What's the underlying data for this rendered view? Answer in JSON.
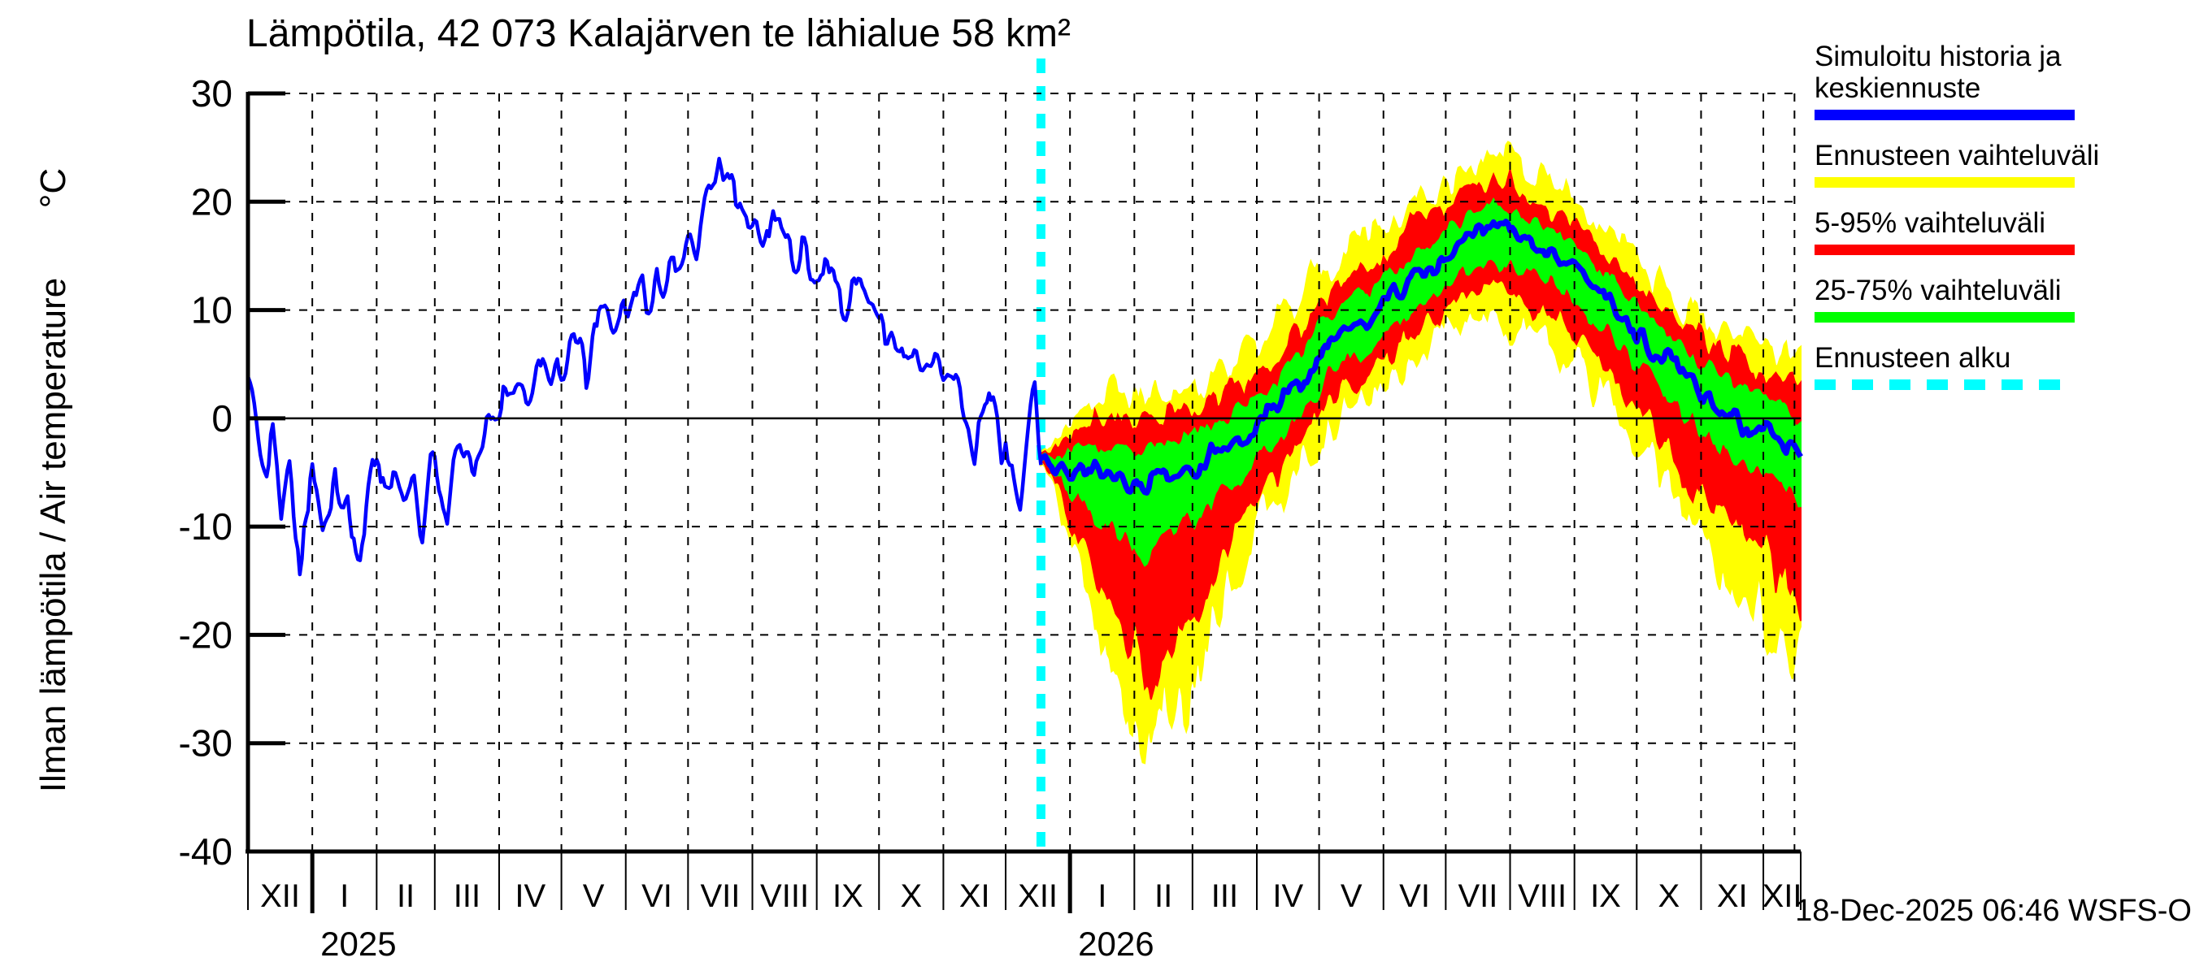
{
  "title": "Lämpötila, 42 073 Kalajärven te lähialue 58 km²",
  "y_axis_label": "Ilman lämpötila / Air temperature       °C",
  "timestamp": "18-Dec-2025 06:46 WSFS-O",
  "legend": {
    "items": [
      {
        "label": "Simuloitu historia ja keskiennuste",
        "color": "#0000ff",
        "style": "solid"
      },
      {
        "label": "Ennusteen vaihteluväli",
        "color": "#ffff00",
        "style": "solid"
      },
      {
        "label": "5-95% vaihteluväli",
        "color": "#ff0000",
        "style": "solid"
      },
      {
        "label": "25-75% vaihteluväli",
        "color": "#00ff00",
        "style": "solid"
      },
      {
        "label": "Ennusteen alku",
        "color": "#00ffff",
        "style": "dashed"
      }
    ]
  },
  "colors": {
    "history_line": "#0000ff",
    "median_line": "#0000ff",
    "band_minmax": "#ffff00",
    "band_5_95": "#ff0000",
    "band_25_75": "#00ff00",
    "forecast_start_line": "#00ffff",
    "grid": "#000000",
    "background": "#ffffff"
  },
  "chart_data": {
    "type": "line",
    "title": "Lämpötila, 42 073 Kalajärven te lähialue 58 km²",
    "ylabel": "Ilman lämpötila / Air temperature  °C",
    "ylim": [
      -40,
      30
    ],
    "yticks": [
      30,
      20,
      10,
      0,
      -10,
      -20,
      -30,
      -40
    ],
    "grid": "dashed, months vertical and 10°C horizontal, zero line solid",
    "legend_position": "right, outside plot",
    "x_start_date": "2024-12-01",
    "x_total_days": 748,
    "forecast_start_day": 382,
    "forecast_start_date": "18-Dec-2025",
    "month_boundary_days": [
      0,
      31,
      62,
      90,
      121,
      151,
      182,
      212,
      243,
      274,
      304,
      335,
      365,
      396,
      427,
      455,
      486,
      516,
      547,
      577,
      608,
      639,
      669,
      700,
      730
    ],
    "month_labels": [
      "XII",
      "I",
      "II",
      "III",
      "IV",
      "V",
      "VI",
      "VII",
      "VIII",
      "IX",
      "X",
      "XI",
      "XII",
      "I",
      "II",
      "III",
      "IV",
      "V",
      "VI",
      "VII",
      "VIII",
      "IX",
      "X",
      "XI",
      "XII"
    ],
    "year_labels": [
      {
        "label": "2025",
        "day": 31
      },
      {
        "label": "2026",
        "day": 396
      }
    ],
    "year_tick_days": [
      31,
      396
    ],
    "right_edge_gridline_day": 745,
    "series_notes": "history = simulated observed daily air temperature; forecast bands fan out from 18-Dec-2025; values in °C read from axes; daily jitter reproduced with seeded noise",
    "history_mean_points": [
      [
        0,
        5
      ],
      [
        4,
        0
      ],
      [
        8,
        -6
      ],
      [
        12,
        -3
      ],
      [
        16,
        -8
      ],
      [
        20,
        -5
      ],
      [
        25,
        -12
      ],
      [
        31,
        -6
      ],
      [
        36,
        -10
      ],
      [
        42,
        -4
      ],
      [
        48,
        -9
      ],
      [
        54,
        -12
      ],
      [
        60,
        -5
      ],
      [
        66,
        -8
      ],
      [
        72,
        -3
      ],
      [
        78,
        -7
      ],
      [
        84,
        -10
      ],
      [
        90,
        -4
      ],
      [
        96,
        -7
      ],
      [
        102,
        -2
      ],
      [
        108,
        -5
      ],
      [
        114,
        -2
      ],
      [
        121,
        0
      ],
      [
        128,
        2
      ],
      [
        134,
        1
      ],
      [
        140,
        4
      ],
      [
        146,
        3
      ],
      [
        151,
        5
      ],
      [
        157,
        7
      ],
      [
        163,
        5
      ],
      [
        169,
        9
      ],
      [
        175,
        8
      ],
      [
        182,
        10
      ],
      [
        186,
        12
      ],
      [
        190,
        14
      ],
      [
        194,
        11
      ],
      [
        200,
        13
      ],
      [
        206,
        12
      ],
      [
        212,
        14
      ],
      [
        217,
        16
      ],
      [
        222,
        22
      ],
      [
        226,
        23.5
      ],
      [
        230,
        21
      ],
      [
        234,
        22
      ],
      [
        238,
        20
      ],
      [
        243,
        17
      ],
      [
        249,
        16
      ],
      [
        255,
        18
      ],
      [
        261,
        15
      ],
      [
        267,
        16
      ],
      [
        274,
        13
      ],
      [
        280,
        14
      ],
      [
        286,
        11
      ],
      [
        292,
        12
      ],
      [
        298,
        9
      ],
      [
        304,
        8
      ],
      [
        310,
        9
      ],
      [
        316,
        5
      ],
      [
        322,
        7
      ],
      [
        328,
        4
      ],
      [
        335,
        3
      ],
      [
        341,
        4
      ],
      [
        345,
        -2
      ],
      [
        350,
        -5
      ],
      [
        355,
        3
      ],
      [
        359,
        2
      ],
      [
        362,
        -2
      ],
      [
        365,
        -1
      ],
      [
        368,
        -5
      ],
      [
        372,
        -6
      ],
      [
        376,
        1
      ],
      [
        379,
        3
      ],
      [
        382,
        -4
      ]
    ],
    "history_noise_amplitude": [
      [
        0,
        3.6
      ],
      [
        90,
        3.3
      ],
      [
        121,
        2.6
      ],
      [
        182,
        3.0
      ],
      [
        212,
        3.6
      ],
      [
        220,
        2.5
      ],
      [
        232,
        2.5
      ],
      [
        240,
        3.2
      ],
      [
        274,
        2.8
      ],
      [
        304,
        2.9
      ],
      [
        365,
        3.1
      ],
      [
        382,
        3.0
      ]
    ],
    "forecast_median_points": [
      [
        382,
        -3.5
      ],
      [
        388,
        -4.2
      ],
      [
        396,
        -5
      ],
      [
        403,
        -4.3
      ],
      [
        410,
        -4.8
      ],
      [
        417,
        -5.5
      ],
      [
        424,
        -6
      ],
      [
        431,
        -6.5
      ],
      [
        438,
        -5.8
      ],
      [
        445,
        -5.2
      ],
      [
        452,
        -5
      ],
      [
        460,
        -4.2
      ],
      [
        468,
        -3
      ],
      [
        476,
        -2
      ],
      [
        486,
        -0.5
      ],
      [
        495,
        1
      ],
      [
        505,
        2.8
      ],
      [
        516,
        6
      ],
      [
        525,
        7.5
      ],
      [
        535,
        8.8
      ],
      [
        547,
        10.5
      ],
      [
        558,
        12
      ],
      [
        568,
        13.8
      ],
      [
        577,
        15
      ],
      [
        587,
        16.3
      ],
      [
        597,
        17.3
      ],
      [
        604,
        17.5
      ],
      [
        612,
        17
      ],
      [
        622,
        16
      ],
      [
        632,
        14.8
      ],
      [
        639,
        13.5
      ],
      [
        650,
        11.8
      ],
      [
        660,
        10
      ],
      [
        669,
        8
      ],
      [
        680,
        6
      ],
      [
        690,
        4
      ],
      [
        700,
        2.5
      ],
      [
        710,
        1
      ],
      [
        720,
        -0.3
      ],
      [
        730,
        -1.5
      ],
      [
        740,
        -2.5
      ],
      [
        748,
        -3
      ]
    ],
    "forecast_bands": {
      "p25_75_offsets": [
        [
          382,
          0,
          0
        ],
        [
          392,
          2.5,
          1.8
        ],
        [
          405,
          4,
          2.5
        ],
        [
          420,
          5,
          3
        ],
        [
          435,
          6,
          3.5
        ],
        [
          450,
          5,
          3
        ],
        [
          470,
          4,
          2.5
        ],
        [
          486,
          3,
          2.5
        ],
        [
          500,
          3,
          2.5
        ],
        [
          516,
          3,
          2.5
        ],
        [
          530,
          2.7,
          2.5
        ],
        [
          547,
          2.5,
          2.3
        ],
        [
          565,
          2.5,
          2.2
        ],
        [
          577,
          2.5,
          2
        ],
        [
          590,
          2.8,
          2
        ],
        [
          608,
          3,
          2
        ],
        [
          625,
          2.7,
          2
        ],
        [
          639,
          2.5,
          2
        ],
        [
          655,
          2.7,
          2.2
        ],
        [
          669,
          3,
          2.5
        ],
        [
          685,
          3.2,
          2.5
        ],
        [
          700,
          3.5,
          2.5
        ],
        [
          715,
          3.7,
          2.7
        ],
        [
          730,
          4,
          2.8
        ],
        [
          748,
          5,
          3
        ]
      ],
      "p5_95_offsets": [
        [
          382,
          0,
          0
        ],
        [
          392,
          6,
          3.5
        ],
        [
          405,
          9.5,
          4.5
        ],
        [
          420,
          13,
          5.5
        ],
        [
          435,
          17,
          6
        ],
        [
          450,
          13.5,
          5.5
        ],
        [
          470,
          10,
          5
        ],
        [
          486,
          6.5,
          4.5
        ],
        [
          500,
          5.8,
          4.8
        ],
        [
          516,
          5.5,
          5
        ],
        [
          530,
          5.2,
          5
        ],
        [
          547,
          5,
          5
        ],
        [
          565,
          5,
          4.8
        ],
        [
          577,
          5,
          4.5
        ],
        [
          590,
          5.5,
          4.5
        ],
        [
          608,
          6,
          4.5
        ],
        [
          625,
          6,
          4.2
        ],
        [
          639,
          6,
          4
        ],
        [
          655,
          6.5,
          4.2
        ],
        [
          669,
          7,
          4.5
        ],
        [
          685,
          8,
          4.8
        ],
        [
          700,
          9,
          5
        ],
        [
          715,
          10,
          5.2
        ],
        [
          730,
          11,
          5.5
        ],
        [
          748,
          14,
          6
        ]
      ],
      "minmax_offsets": [
        [
          382,
          0,
          0
        ],
        [
          392,
          9,
          5
        ],
        [
          405,
          14,
          7
        ],
        [
          420,
          19,
          8
        ],
        [
          435,
          25,
          8
        ],
        [
          450,
          20,
          8
        ],
        [
          470,
          15,
          7
        ],
        [
          486,
          9.5,
          7
        ],
        [
          500,
          8.5,
          7.2
        ],
        [
          516,
          8,
          7.5
        ],
        [
          530,
          7.5,
          7.2
        ],
        [
          547,
          7,
          7
        ],
        [
          565,
          7,
          7
        ],
        [
          577,
          7,
          7
        ],
        [
          590,
          8,
          7
        ],
        [
          608,
          8.5,
          7
        ],
        [
          625,
          8,
          6.5
        ],
        [
          639,
          8,
          6
        ],
        [
          655,
          9,
          6.2
        ],
        [
          669,
          10,
          6.5
        ],
        [
          685,
          11.5,
          6.8
        ],
        [
          700,
          13,
          7
        ],
        [
          715,
          15,
          7.5
        ],
        [
          730,
          17,
          8
        ],
        [
          748,
          20,
          8
        ]
      ]
    }
  }
}
